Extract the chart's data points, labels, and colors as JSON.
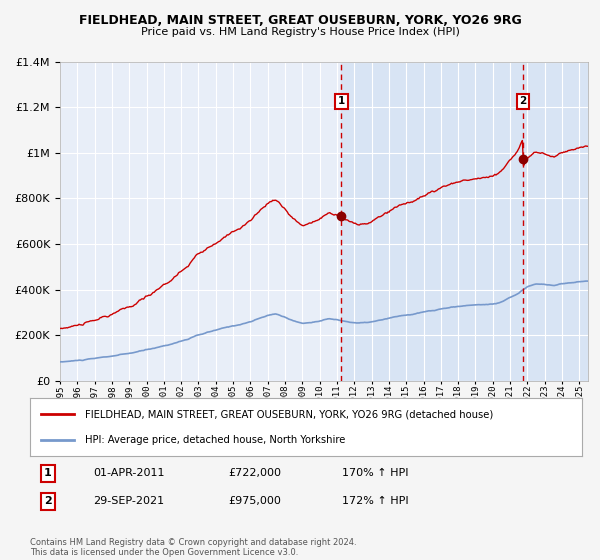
{
  "title": "FIELDHEAD, MAIN STREET, GREAT OUSEBURN, YORK, YO26 9RG",
  "subtitle": "Price paid vs. HM Land Registry's House Price Index (HPI)",
  "legend_label_red": "FIELDHEAD, MAIN STREET, GREAT OUSEBURN, YORK, YO26 9RG (detached house)",
  "legend_label_blue": "HPI: Average price, detached house, North Yorkshire",
  "sale1_label": "1",
  "sale1_date": "01-APR-2011",
  "sale1_price": "£722,000",
  "sale1_hpi": "170% ↑ HPI",
  "sale1_year": 2011.25,
  "sale1_value": 722000,
  "sale2_label": "2",
  "sale2_date": "29-SEP-2021",
  "sale2_price": "£975,000",
  "sale2_hpi": "172% ↑ HPI",
  "sale2_year": 2021.75,
  "sale2_value": 975000,
  "copyright_text": "Contains HM Land Registry data © Crown copyright and database right 2024.\nThis data is licensed under the Open Government Licence v3.0.",
  "background_color": "#f5f5f5",
  "plot_bg_color": "#e8eef8",
  "grid_color": "#ffffff",
  "red_color": "#cc0000",
  "blue_color": "#7799cc",
  "shade_color": "#d8e4f4",
  "ylim": [
    0,
    1400000
  ],
  "xlim_start": 1995,
  "xlim_end": 2025.5
}
